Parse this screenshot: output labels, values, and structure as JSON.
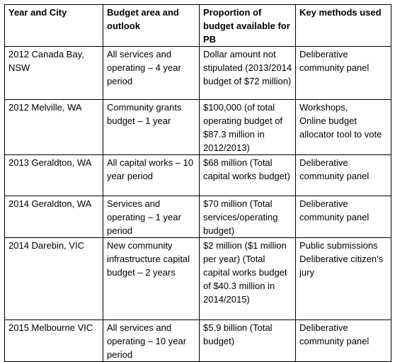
{
  "table": {
    "header": [
      "Year and City",
      "Budget area and outlook",
      "Proportion of budget available for PB",
      "Key methods used"
    ],
    "rows": [
      [
        "2012 Canada Bay, NSW",
        "All services and operating – 4 year period",
        "Dollar amount not stipulated (2013/2014 budget of $72 million)",
        "Deliberative community panel"
      ],
      [
        "2012 Melville, WA",
        "Community grants budget – 1 year",
        "$100,000 (of total operating budget of $87.3 million in 2012/2013)",
        "Workshops,\nOnline budget allocator tool to vote"
      ],
      [
        "2013 Geraldton, WA",
        "All capital works – 10 year period",
        "$68 million (Total capital works budget)",
        "Deliberative community panel"
      ],
      [
        "2014 Geraldton, WA",
        "Services and operating – 1 year period",
        "$70 million (Total services/operating budget)",
        "Deliberative community panel"
      ],
      [
        "2014 Darebin, VIC",
        "New community infrastructure capital budget – 2 years",
        "$2 million ($1 million per year) (Total capital works budget of $40.3 million in 2014/2015)",
        "Public submissions\nDeliberative citizen’s jury"
      ],
      [
        "2015 Melbourne VIC",
        "All services and operating – 10 year period",
        "$5.9 billion (Total budget)",
        "Deliberative community panel"
      ]
    ]
  }
}
